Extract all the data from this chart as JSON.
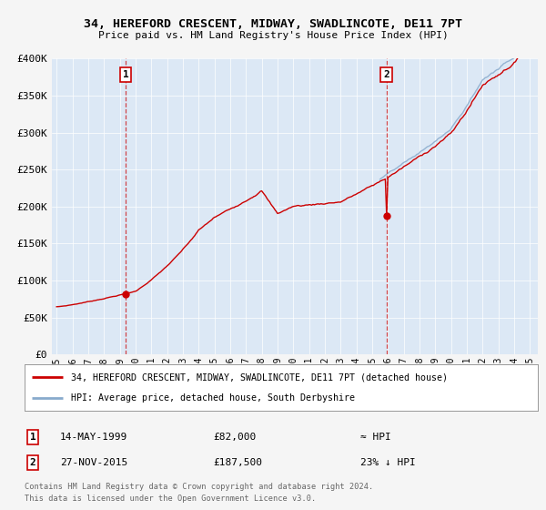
{
  "title": "34, HEREFORD CRESCENT, MIDWAY, SWADLINCOTE, DE11 7PT",
  "subtitle": "Price paid vs. HM Land Registry's House Price Index (HPI)",
  "red_label": "34, HEREFORD CRESCENT, MIDWAY, SWADLINCOTE, DE11 7PT (detached house)",
  "blue_label": "HPI: Average price, detached house, South Derbyshire",
  "ann1_date": "14-MAY-1999",
  "ann1_price": "£82,000",
  "ann1_hpi": "≈ HPI",
  "ann2_date": "27-NOV-2015",
  "ann2_price": "£187,500",
  "ann2_hpi": "23% ↓ HPI",
  "footnote1": "Contains HM Land Registry data © Crown copyright and database right 2024.",
  "footnote2": "This data is licensed under the Open Government Licence v3.0.",
  "fig_bg_color": "#f5f5f5",
  "plot_bg_color": "#dce8f5",
  "red_color": "#cc0000",
  "blue_color": "#88aacc",
  "vline_color": "#cc0000",
  "ylim": [
    0,
    400000
  ],
  "yticks": [
    0,
    50000,
    100000,
    150000,
    200000,
    250000,
    300000,
    350000,
    400000
  ],
  "xlim_start": 1994.7,
  "xlim_end": 2025.5,
  "ann1_x": 1999.37,
  "ann1_y": 82000,
  "ann2_x": 2015.9,
  "ann2_y": 187500
}
